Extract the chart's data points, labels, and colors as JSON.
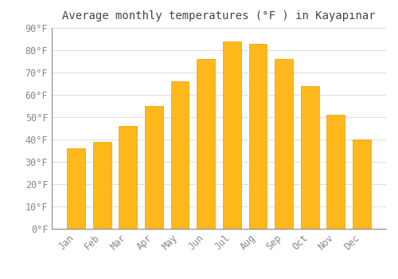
{
  "title": "Average monthly temperatures (°F ) in Kayapınar",
  "months": [
    "Jan",
    "Feb",
    "Mar",
    "Apr",
    "May",
    "Jun",
    "Jul",
    "Aug",
    "Sep",
    "Oct",
    "Nov",
    "Dec"
  ],
  "values": [
    36,
    39,
    46,
    55,
    66,
    76,
    84,
    83,
    76,
    64,
    51,
    40
  ],
  "bar_color_top": "#FFB81C",
  "bar_color_bottom": "#FFCA5A",
  "bar_edge_color": "#E8A000",
  "background_color": "#FFFFFF",
  "grid_color": "#DDDDDD",
  "text_color": "#888888",
  "title_color": "#444444",
  "ylim": [
    0,
    90
  ],
  "yticks": [
    0,
    10,
    20,
    30,
    40,
    50,
    60,
    70,
    80,
    90
  ],
  "title_fontsize": 10,
  "tick_fontsize": 8.5,
  "bar_width": 0.7
}
